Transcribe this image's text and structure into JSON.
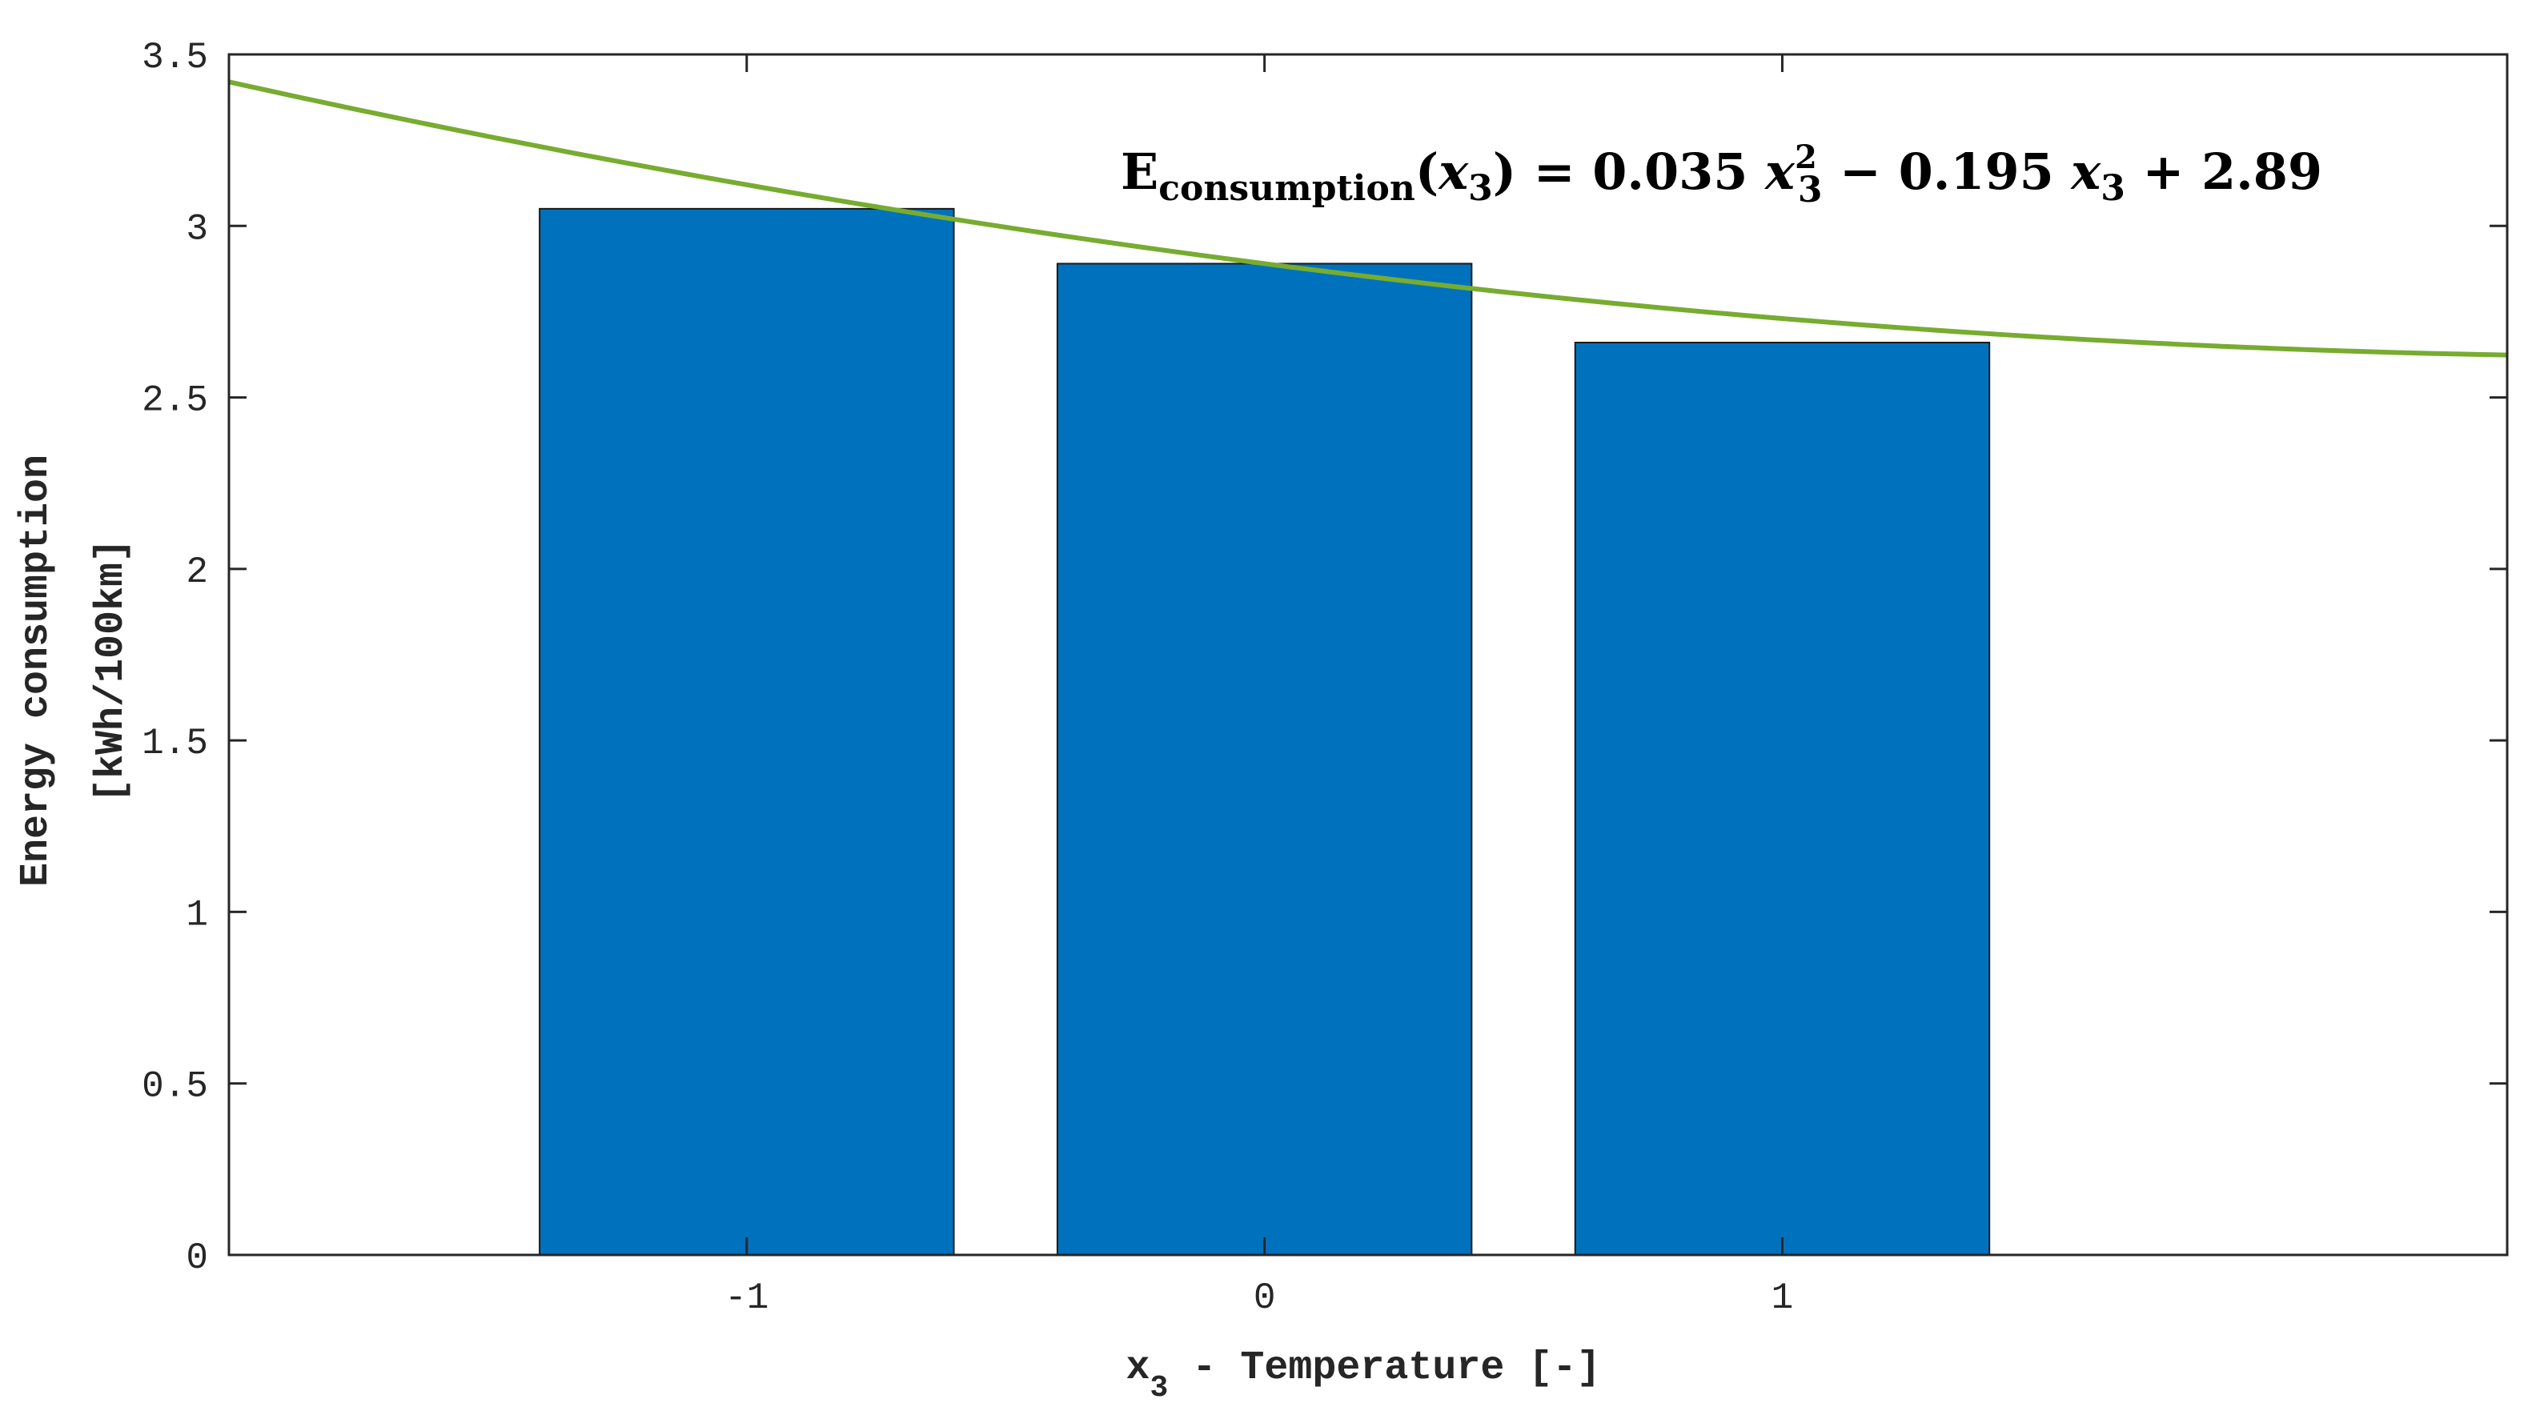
{
  "chart_data": {
    "type": "bar",
    "categories": [
      "-1",
      "0",
      "1"
    ],
    "x": [
      -1,
      0,
      1
    ],
    "values": [
      3.05,
      2.89,
      2.66
    ],
    "bar_color": "#0072BD",
    "xlabel": {
      "base": "x",
      "sub": "3",
      "rest": " - Temperature [-]"
    },
    "ylabel": [
      "Energy consumption",
      "[kWh/100km]"
    ],
    "xlim": [
      -2,
      2.4
    ],
    "ylim": [
      0,
      3.5
    ],
    "yticks": [
      0,
      0.5,
      1,
      1.5,
      2,
      2.5,
      3,
      3.5
    ],
    "ytick_labels": [
      "0",
      "0.5",
      "1",
      "1.5",
      "2",
      "2.5",
      "3",
      "3.5"
    ],
    "xticks": [
      -1,
      0,
      1
    ],
    "xtick_labels": [
      "-1",
      "0",
      "1"
    ],
    "grid": false,
    "fit_curve": {
      "type": "line",
      "equation_coefficients": {
        "a": 0.035,
        "b": -0.195,
        "c": 2.89
      },
      "color": "#77AC30",
      "x_range": [
        -2,
        2.4
      ]
    },
    "annotation": {
      "E": "E",
      "E_sub": "consumption",
      "paren_open": "(",
      "var": "x",
      "var_sub": "3",
      "paren_close_eq": ") = ",
      "t1": "0.035 ",
      "x1": "x",
      "x1_sup": "2",
      "x1_sub": "3",
      "op1": " − ",
      "t2": "0.195 ",
      "x2": "x",
      "x2_sub": "3",
      "op2": " + ",
      "t3": "2.89"
    }
  }
}
